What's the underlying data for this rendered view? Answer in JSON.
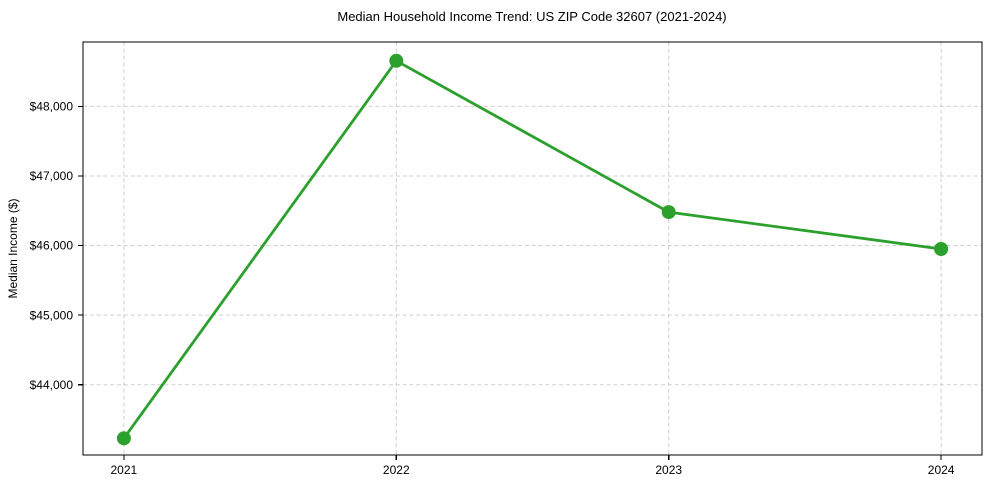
{
  "chart_data": {
    "type": "line",
    "title": "Median Household Income Trend: US ZIP Code 32607 (2021-2024)",
    "xlabel": "",
    "ylabel": "Median Income ($)",
    "x": [
      2021,
      2022,
      2023,
      2024
    ],
    "x_tick_labels": [
      "2021",
      "2022",
      "2023",
      "2024"
    ],
    "series": [
      {
        "name": "Median Household Income",
        "values": [
          43230,
          48655,
          46480,
          45950
        ]
      }
    ],
    "y_ticks": [
      44000,
      45000,
      46000,
      47000,
      48000
    ],
    "y_tick_labels": [
      "$44,000",
      "$45,000",
      "$46,000",
      "$47,000",
      "$48,000"
    ],
    "xlim": [
      2020.85,
      2024.15
    ],
    "ylim": [
      42990,
      48925
    ],
    "grid": true,
    "grid_style": "dashed",
    "legend_position": "none",
    "colors": {
      "line": "#2ca02c",
      "marker": "#2ca02c",
      "grid": "#d0d0d0",
      "axis": "#000000",
      "background": "#ffffff"
    }
  }
}
